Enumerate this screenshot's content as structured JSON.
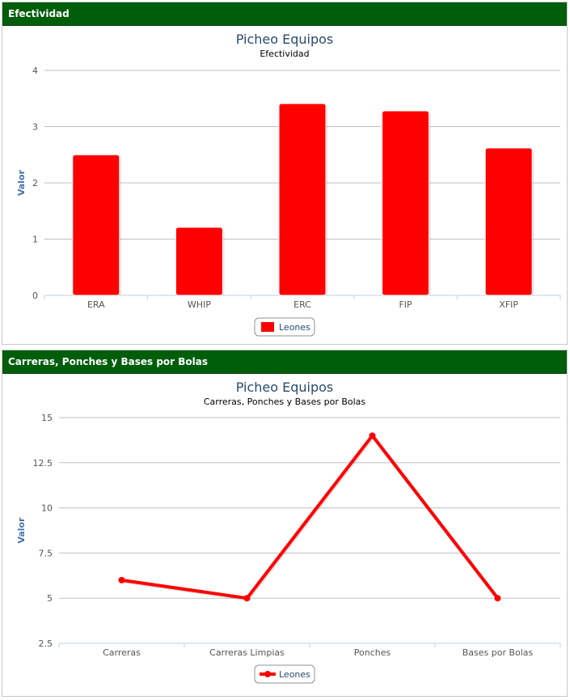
{
  "panels": [
    {
      "header": "Efectividad",
      "chart_data": {
        "type": "bar",
        "title": "Picheo Equipos",
        "subtitle": "Efectividad",
        "xlabel": "",
        "ylabel": "Valor",
        "categories": [
          "ERA",
          "WHIP",
          "ERC",
          "FIP",
          "XFIP"
        ],
        "series": [
          {
            "name": "Leones",
            "values": [
              2.5,
              1.21,
              3.41,
              3.28,
              2.62
            ],
            "color": "#ff0000"
          }
        ],
        "ylim": [
          0,
          4
        ],
        "yticks": [
          0,
          1,
          2,
          3,
          4
        ],
        "ytick_labels": [
          "0",
          "1",
          "2",
          "3",
          "4"
        ],
        "grid": true,
        "legend": "bottom-center"
      }
    },
    {
      "header": "Carreras, Ponches y Bases por Bolas",
      "chart_data": {
        "type": "line",
        "title": "Picheo Equipos",
        "subtitle": "Carreras, Ponches y Bases por Bolas",
        "xlabel": "",
        "ylabel": "Valor",
        "categories": [
          "Carreras",
          "Carreras Limpias",
          "Ponches",
          "Bases por Bolas"
        ],
        "series": [
          {
            "name": "Leones",
            "values": [
              6,
              5,
              14,
              5
            ],
            "color": "#ff0000"
          }
        ],
        "ylim": [
          2.5,
          15
        ],
        "yticks": [
          2.5,
          5,
          7.5,
          10,
          12.5,
          15
        ],
        "ytick_labels": [
          "2.5",
          "5",
          "7.5",
          "10",
          "12.5",
          "15"
        ],
        "grid": true,
        "legend": "bottom-center"
      }
    }
  ]
}
